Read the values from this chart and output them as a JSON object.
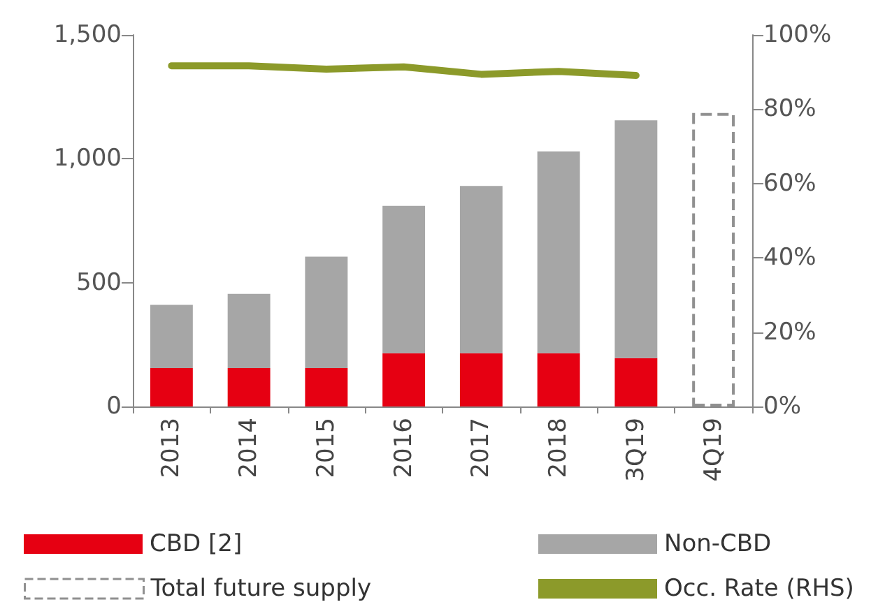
{
  "chart_data": {
    "type": "bar",
    "stacked": true,
    "categories": [
      "2013",
      "2014",
      "2015",
      "2016",
      "2017",
      "2018",
      "3Q19",
      "4Q19"
    ],
    "series": [
      {
        "name": "CBD [2]",
        "color": "#e60012",
        "values": [
          155,
          155,
          155,
          215,
          215,
          215,
          195,
          null
        ]
      },
      {
        "name": "Non-CBD",
        "color": "#a6a6a6",
        "values": [
          255,
          300,
          450,
          595,
          675,
          815,
          960,
          null
        ]
      },
      {
        "name": "Total future supply",
        "color": "#909090",
        "line_style": "dashed",
        "values": [
          null,
          null,
          null,
          null,
          null,
          null,
          null,
          1185
        ]
      },
      {
        "name": "Occ. Rate (RHS)",
        "type": "line",
        "axis": "y2",
        "color": "#8c9a2a",
        "marker": "none",
        "values": [
          91.7,
          91.7,
          90.8,
          91.4,
          89.4,
          90.2,
          89.1,
          null
        ]
      }
    ],
    "ylim": [
      0,
      1500
    ],
    "yticks": [
      {
        "value": 0,
        "label": "0"
      },
      {
        "value": 500,
        "label": "500"
      },
      {
        "value": 1000,
        "label": "1,000"
      },
      {
        "value": 1500,
        "label": "1,500"
      }
    ],
    "y2lim": [
      0,
      100
    ],
    "y2ticks": [
      {
        "value": 0,
        "label": "0%"
      },
      {
        "value": 20,
        "label": "20%"
      },
      {
        "value": 40,
        "label": "40%"
      },
      {
        "value": 60,
        "label": "60%"
      },
      {
        "value": 80,
        "label": "80%"
      },
      {
        "value": 100,
        "label": "100%"
      }
    ],
    "grid": false,
    "legend": "bottom"
  }
}
